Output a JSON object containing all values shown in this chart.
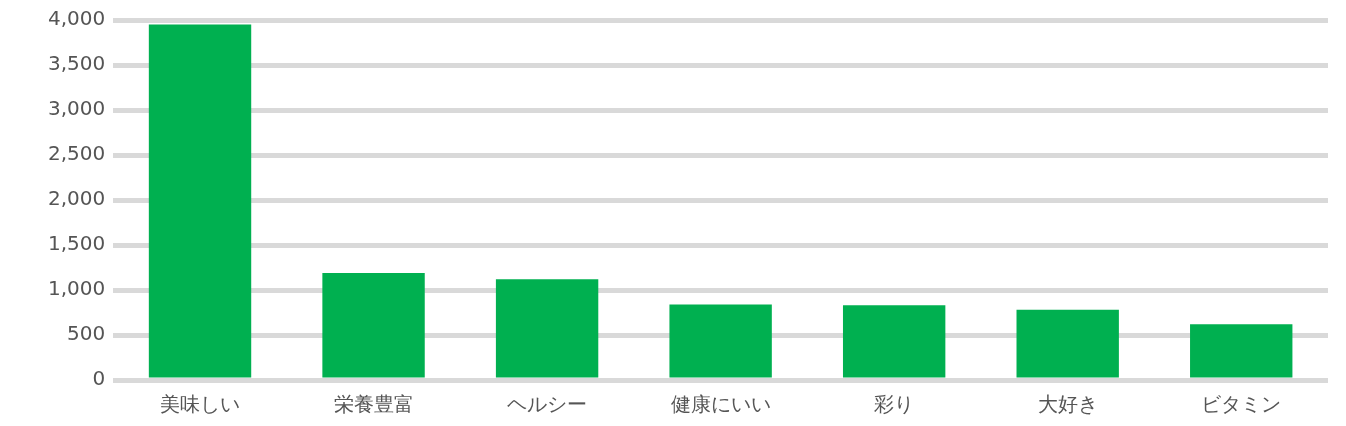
{
  "chart_data": {
    "type": "bar",
    "categories": [
      "美味しい",
      "栄養豊富",
      "ヘルシー",
      "健康にいい",
      "彩り",
      "大好き",
      "ビタミン"
    ],
    "values": [
      3950,
      1190,
      1120,
      840,
      830,
      780,
      620
    ],
    "color": "#00b050",
    "ylim": [
      0,
      4000
    ],
    "yticks": [
      {
        "value": 0,
        "label": "0"
      },
      {
        "value": 500,
        "label": "500"
      },
      {
        "value": 1000,
        "label": "1,000"
      },
      {
        "value": 1500,
        "label": "1,500"
      },
      {
        "value": 2000,
        "label": "2,000"
      },
      {
        "value": 2500,
        "label": "2,500"
      },
      {
        "value": 3000,
        "label": "3,000"
      },
      {
        "value": 3500,
        "label": "3,500"
      },
      {
        "value": 4000,
        "label": "4,000"
      }
    ],
    "grid": "y",
    "legend": false
  }
}
